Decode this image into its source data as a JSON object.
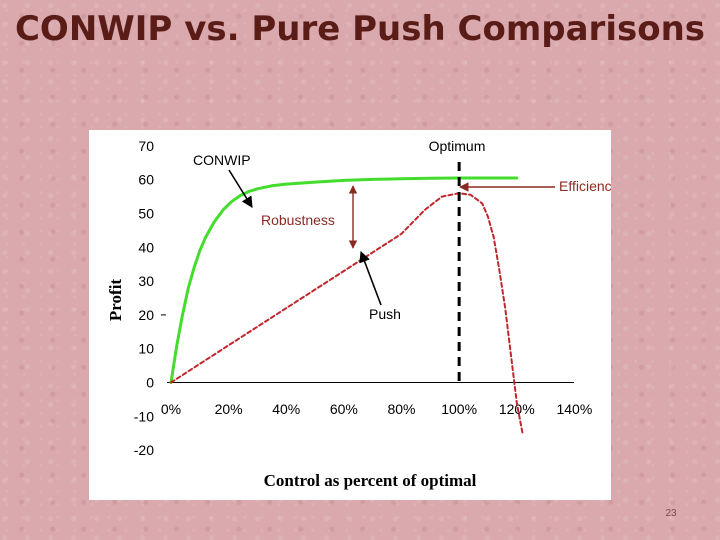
{
  "slide": {
    "title": "CONWIP vs. Pure Push Comparisons",
    "number": "23"
  },
  "colors": {
    "conwip": "#44dd2e",
    "push": "#c0272d",
    "annotation": "#8b2a24",
    "axis": "#000000",
    "title": "#5a1c17"
  },
  "chart_data": {
    "type": "line",
    "xlabel": "Control as percent of optimal",
    "ylabel": "Profit",
    "x_ticks": [
      "0%",
      "20%",
      "40%",
      "60%",
      "80%",
      "100%",
      "120%",
      "140%"
    ],
    "y_ticks": [
      "70",
      "60",
      "50",
      "40",
      "30",
      "20",
      "10",
      "0",
      "-10",
      "-20"
    ],
    "xlim": [
      0,
      140
    ],
    "ylim": [
      -20,
      70
    ],
    "grid": false,
    "series": [
      {
        "name": "CONWIP",
        "style": "solid",
        "x": [
          0,
          2,
          4,
          6,
          8,
          10,
          12,
          15,
          18,
          21,
          24,
          27,
          30,
          35,
          40,
          50,
          60,
          70,
          80,
          90,
          100,
          110,
          120
        ],
        "y": [
          0,
          11,
          20,
          28,
          34,
          39,
          43,
          47.5,
          51,
          53.5,
          55.3,
          56.5,
          57.3,
          58.2,
          58.7,
          59.3,
          59.8,
          60.1,
          60.3,
          60.4,
          60.5,
          60.5,
          60.5
        ]
      },
      {
        "name": "Push",
        "style": "dashed",
        "x": [
          0,
          20,
          40,
          60,
          80,
          88,
          94,
          100,
          104,
          108,
          110,
          112,
          114,
          116,
          118,
          120,
          122
        ],
        "y": [
          0,
          11,
          22,
          33,
          44,
          51,
          55,
          56,
          55.5,
          53,
          49,
          43,
          33,
          22,
          8,
          -6,
          -15
        ]
      }
    ],
    "annotations": [
      {
        "text": "CONWIP"
      },
      {
        "text": "Optimum"
      },
      {
        "text": "Efficiency"
      },
      {
        "text": "Robustness"
      },
      {
        "text": "Push"
      }
    ]
  }
}
